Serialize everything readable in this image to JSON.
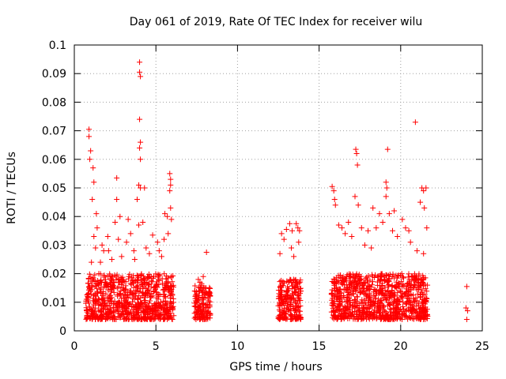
{
  "chart_data": {
    "type": "scatter",
    "title": "Day 061 of 2019, Rate Of TEC Index for receiver wilu",
    "xlabel": "GPS time / hours",
    "ylabel": "ROTI / TECUs",
    "xlim": [
      0,
      25
    ],
    "ylim": [
      0,
      0.1
    ],
    "grid": true,
    "marker": "+",
    "series_color": "#ff0000",
    "x_ticks": [
      {
        "value": 0,
        "label": "0"
      },
      {
        "value": 5,
        "label": "5"
      },
      {
        "value": 10,
        "label": "10"
      },
      {
        "value": 15,
        "label": "15"
      },
      {
        "value": 20,
        "label": "20"
      },
      {
        "value": 25,
        "label": "25"
      }
    ],
    "y_ticks": [
      {
        "value": 0,
        "label": "0"
      },
      {
        "value": 0.01,
        "label": "0.01"
      },
      {
        "value": 0.02,
        "label": "0.02"
      },
      {
        "value": 0.03,
        "label": "0.03"
      },
      {
        "value": 0.04,
        "label": "0.04"
      },
      {
        "value": 0.05,
        "label": "0.05"
      },
      {
        "value": 0.06,
        "label": "0.06"
      },
      {
        "value": 0.07,
        "label": "0.07"
      },
      {
        "value": 0.08,
        "label": "0.08"
      },
      {
        "value": 0.09,
        "label": "0.09"
      },
      {
        "value": 0.1,
        "label": "0.1"
      }
    ],
    "points": [
      [
        0.9,
        0.0705
      ],
      [
        0.9,
        0.068
      ],
      [
        1.0,
        0.063
      ],
      [
        0.95,
        0.06
      ],
      [
        1.15,
        0.057
      ],
      [
        1.2,
        0.052
      ],
      [
        1.1,
        0.046
      ],
      [
        1.35,
        0.041
      ],
      [
        1.2,
        0.033
      ],
      [
        1.3,
        0.029
      ],
      [
        1.05,
        0.024
      ],
      [
        1.5,
        0.02
      ],
      [
        1.4,
        0.036
      ],
      [
        1.6,
        0.024
      ],
      [
        1.7,
        0.03
      ],
      [
        1.8,
        0.028
      ],
      [
        2.05,
        0.033
      ],
      [
        2.1,
        0.028
      ],
      [
        2.3,
        0.025
      ],
      [
        2.6,
        0.0535
      ],
      [
        2.6,
        0.046
      ],
      [
        2.5,
        0.038
      ],
      [
        2.7,
        0.032
      ],
      [
        2.9,
        0.026
      ],
      [
        2.8,
        0.04
      ],
      [
        3.2,
        0.031
      ],
      [
        3.3,
        0.039
      ],
      [
        3.45,
        0.034
      ],
      [
        3.65,
        0.028
      ],
      [
        3.7,
        0.025
      ],
      [
        3.85,
        0.046
      ],
      [
        3.95,
        0.037
      ],
      [
        4.0,
        0.094
      ],
      [
        4.0,
        0.0905
      ],
      [
        4.05,
        0.089
      ],
      [
        4.0,
        0.074
      ],
      [
        4.05,
        0.066
      ],
      [
        4.0,
        0.064
      ],
      [
        4.05,
        0.06
      ],
      [
        3.95,
        0.051
      ],
      [
        4.05,
        0.05
      ],
      [
        4.3,
        0.05
      ],
      [
        4.2,
        0.038
      ],
      [
        4.4,
        0.029
      ],
      [
        4.6,
        0.027
      ],
      [
        4.8,
        0.0335
      ],
      [
        5.1,
        0.031
      ],
      [
        5.2,
        0.028
      ],
      [
        5.35,
        0.026
      ],
      [
        5.5,
        0.032
      ],
      [
        5.55,
        0.041
      ],
      [
        5.7,
        0.04
      ],
      [
        5.85,
        0.055
      ],
      [
        5.9,
        0.053
      ],
      [
        5.9,
        0.051
      ],
      [
        5.85,
        0.049
      ],
      [
        5.9,
        0.043
      ],
      [
        5.95,
        0.039
      ],
      [
        5.75,
        0.034
      ],
      [
        7.6,
        0.018
      ],
      [
        7.7,
        0.017
      ],
      [
        7.8,
        0.0165
      ],
      [
        7.9,
        0.019
      ],
      [
        8.1,
        0.0275
      ],
      [
        8.0,
        0.015
      ],
      [
        7.55,
        0.0045
      ],
      [
        8.3,
        0.0055
      ],
      [
        12.6,
        0.027
      ],
      [
        12.7,
        0.034
      ],
      [
        12.85,
        0.032
      ],
      [
        13.0,
        0.0355
      ],
      [
        13.2,
        0.0375
      ],
      [
        13.35,
        0.035
      ],
      [
        13.3,
        0.029
      ],
      [
        13.45,
        0.026
      ],
      [
        13.6,
        0.0375
      ],
      [
        13.7,
        0.036
      ],
      [
        13.8,
        0.035
      ],
      [
        13.75,
        0.031
      ],
      [
        12.55,
        0.0045
      ],
      [
        13.85,
        0.0045
      ],
      [
        15.8,
        0.0505
      ],
      [
        15.9,
        0.049
      ],
      [
        15.95,
        0.046
      ],
      [
        16.0,
        0.044
      ],
      [
        16.2,
        0.037
      ],
      [
        16.4,
        0.036
      ],
      [
        16.6,
        0.034
      ],
      [
        16.8,
        0.038
      ],
      [
        17.0,
        0.033
      ],
      [
        17.2,
        0.047
      ],
      [
        17.25,
        0.0635
      ],
      [
        17.3,
        0.062
      ],
      [
        17.35,
        0.058
      ],
      [
        17.4,
        0.044
      ],
      [
        17.6,
        0.036
      ],
      [
        17.8,
        0.03
      ],
      [
        18.0,
        0.035
      ],
      [
        18.2,
        0.029
      ],
      [
        18.3,
        0.043
      ],
      [
        18.5,
        0.036
      ],
      [
        18.7,
        0.041
      ],
      [
        18.9,
        0.038
      ],
      [
        19.1,
        0.052
      ],
      [
        19.15,
        0.05
      ],
      [
        19.1,
        0.047
      ],
      [
        19.2,
        0.0635
      ],
      [
        19.3,
        0.041
      ],
      [
        19.5,
        0.035
      ],
      [
        19.6,
        0.042
      ],
      [
        19.8,
        0.033
      ],
      [
        20.1,
        0.039
      ],
      [
        20.3,
        0.036
      ],
      [
        20.5,
        0.035
      ],
      [
        20.6,
        0.031
      ],
      [
        20.9,
        0.073
      ],
      [
        21.0,
        0.028
      ],
      [
        21.2,
        0.045
      ],
      [
        21.3,
        0.05
      ],
      [
        21.4,
        0.049
      ],
      [
        21.45,
        0.043
      ],
      [
        21.55,
        0.05
      ],
      [
        21.6,
        0.036
      ],
      [
        21.4,
        0.027
      ],
      [
        24.05,
        0.0155
      ],
      [
        24.0,
        0.008
      ],
      [
        24.1,
        0.007
      ],
      [
        24.05,
        0.004
      ]
    ],
    "dense_regions": [
      {
        "x": [
          0.7,
          6.1
        ],
        "y": [
          0.004,
          0.02
        ]
      },
      {
        "x": [
          7.35,
          8.35
        ],
        "y": [
          0.004,
          0.016
        ]
      },
      {
        "x": [
          12.5,
          13.9
        ],
        "y": [
          0.004,
          0.018
        ]
      },
      {
        "x": [
          15.75,
          21.65
        ],
        "y": [
          0.004,
          0.02
        ]
      }
    ]
  }
}
